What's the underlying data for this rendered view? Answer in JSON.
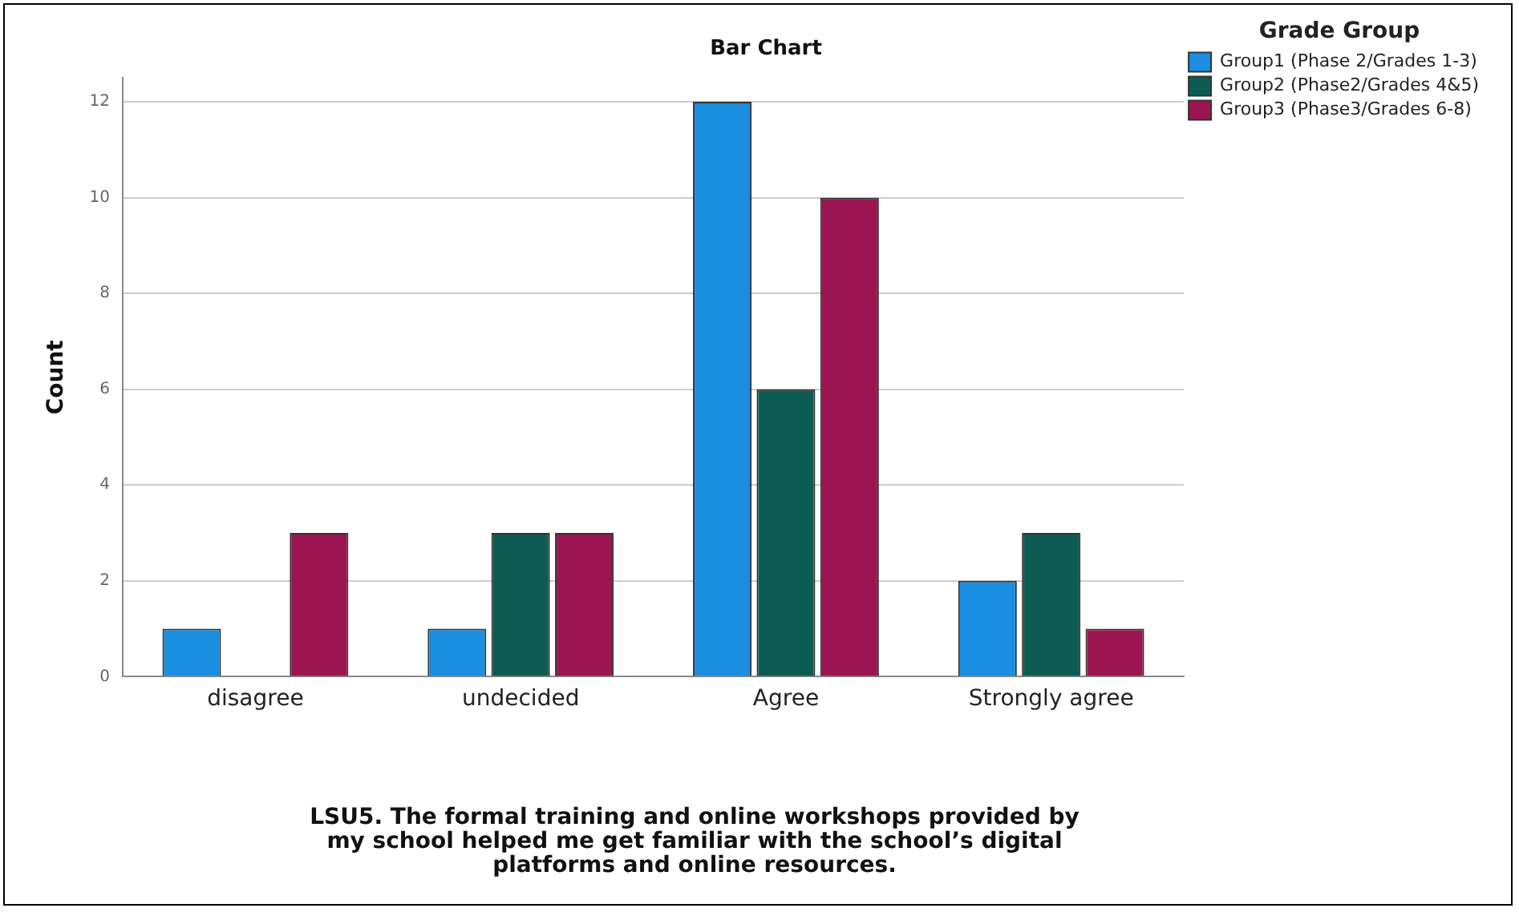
{
  "chart_data": {
    "type": "bar",
    "title": "Bar Chart",
    "xlabel": "LSU5. The formal training and online workshops provided by my school helped me get familiar with the school’s digital platforms and online resources.",
    "ylabel": "Count",
    "legend_title": "Grade Group",
    "legend": "top right",
    "grid": "y",
    "categories": [
      "disagree",
      "undecided",
      "Agree",
      "Strongly agree"
    ],
    "series": [
      {
        "name": "Group1 (Phase 2/Grades 1-3)",
        "color": "#1a8ee0",
        "values": [
          1,
          1,
          12,
          2
        ]
      },
      {
        "name": "Group2 (Phase2/Grades 4&5)",
        "color": "#0d5c52",
        "values": [
          0,
          3,
          6,
          3
        ]
      },
      {
        "name": "Group3 (Phase3/Grades 6-8)",
        "color": "#9c1550",
        "values": [
          3,
          3,
          10,
          1
        ]
      }
    ],
    "ylim": [
      0,
      12.5
    ],
    "yticks": [
      0,
      2,
      4,
      6,
      8,
      10,
      12
    ]
  }
}
